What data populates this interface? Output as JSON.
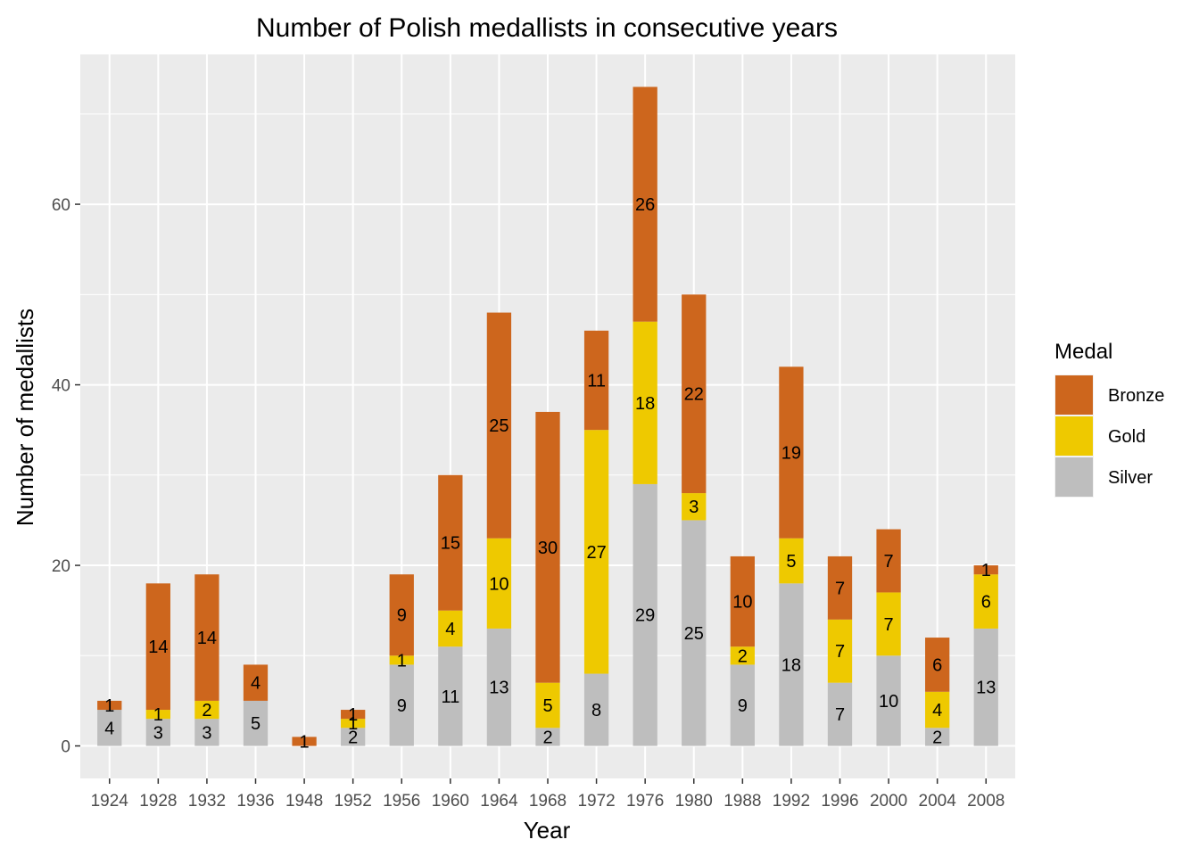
{
  "chart_data": {
    "type": "bar",
    "stacked": true,
    "title": "Number of Polish medallists in consecutive years",
    "xlabel": "Year",
    "ylabel": "Number of medallists",
    "categories": [
      "1924",
      "1928",
      "1932",
      "1936",
      "1948",
      "1952",
      "1956",
      "1960",
      "1964",
      "1968",
      "1972",
      "1976",
      "1980",
      "1988",
      "1992",
      "1996",
      "2000",
      "2004",
      "2008"
    ],
    "series": [
      {
        "name": "Silver",
        "color": "#bebebe",
        "values": [
          4,
          3,
          3,
          5,
          0,
          2,
          9,
          11,
          13,
          2,
          8,
          29,
          25,
          9,
          18,
          7,
          10,
          2,
          13
        ]
      },
      {
        "name": "Gold",
        "color": "#eec900",
        "values": [
          0,
          1,
          2,
          0,
          0,
          1,
          1,
          4,
          10,
          5,
          27,
          18,
          3,
          2,
          5,
          7,
          7,
          4,
          6
        ]
      },
      {
        "name": "Bronze",
        "color": "#cd661d",
        "values": [
          1,
          14,
          14,
          4,
          1,
          1,
          9,
          15,
          25,
          30,
          11,
          26,
          22,
          10,
          19,
          7,
          7,
          6,
          1
        ]
      }
    ],
    "ylim": [
      -3.6,
      76.6
    ],
    "yticks": [
      0,
      20,
      40,
      60
    ],
    "grid": true,
    "legend": {
      "title": "Medal",
      "position": "right",
      "entries": [
        {
          "label": "Bronze",
          "color": "#cd661d"
        },
        {
          "label": "Gold",
          "color": "#eec900"
        },
        {
          "label": "Silver",
          "color": "#bebebe"
        }
      ]
    },
    "panel_background": "#ebebeb"
  }
}
